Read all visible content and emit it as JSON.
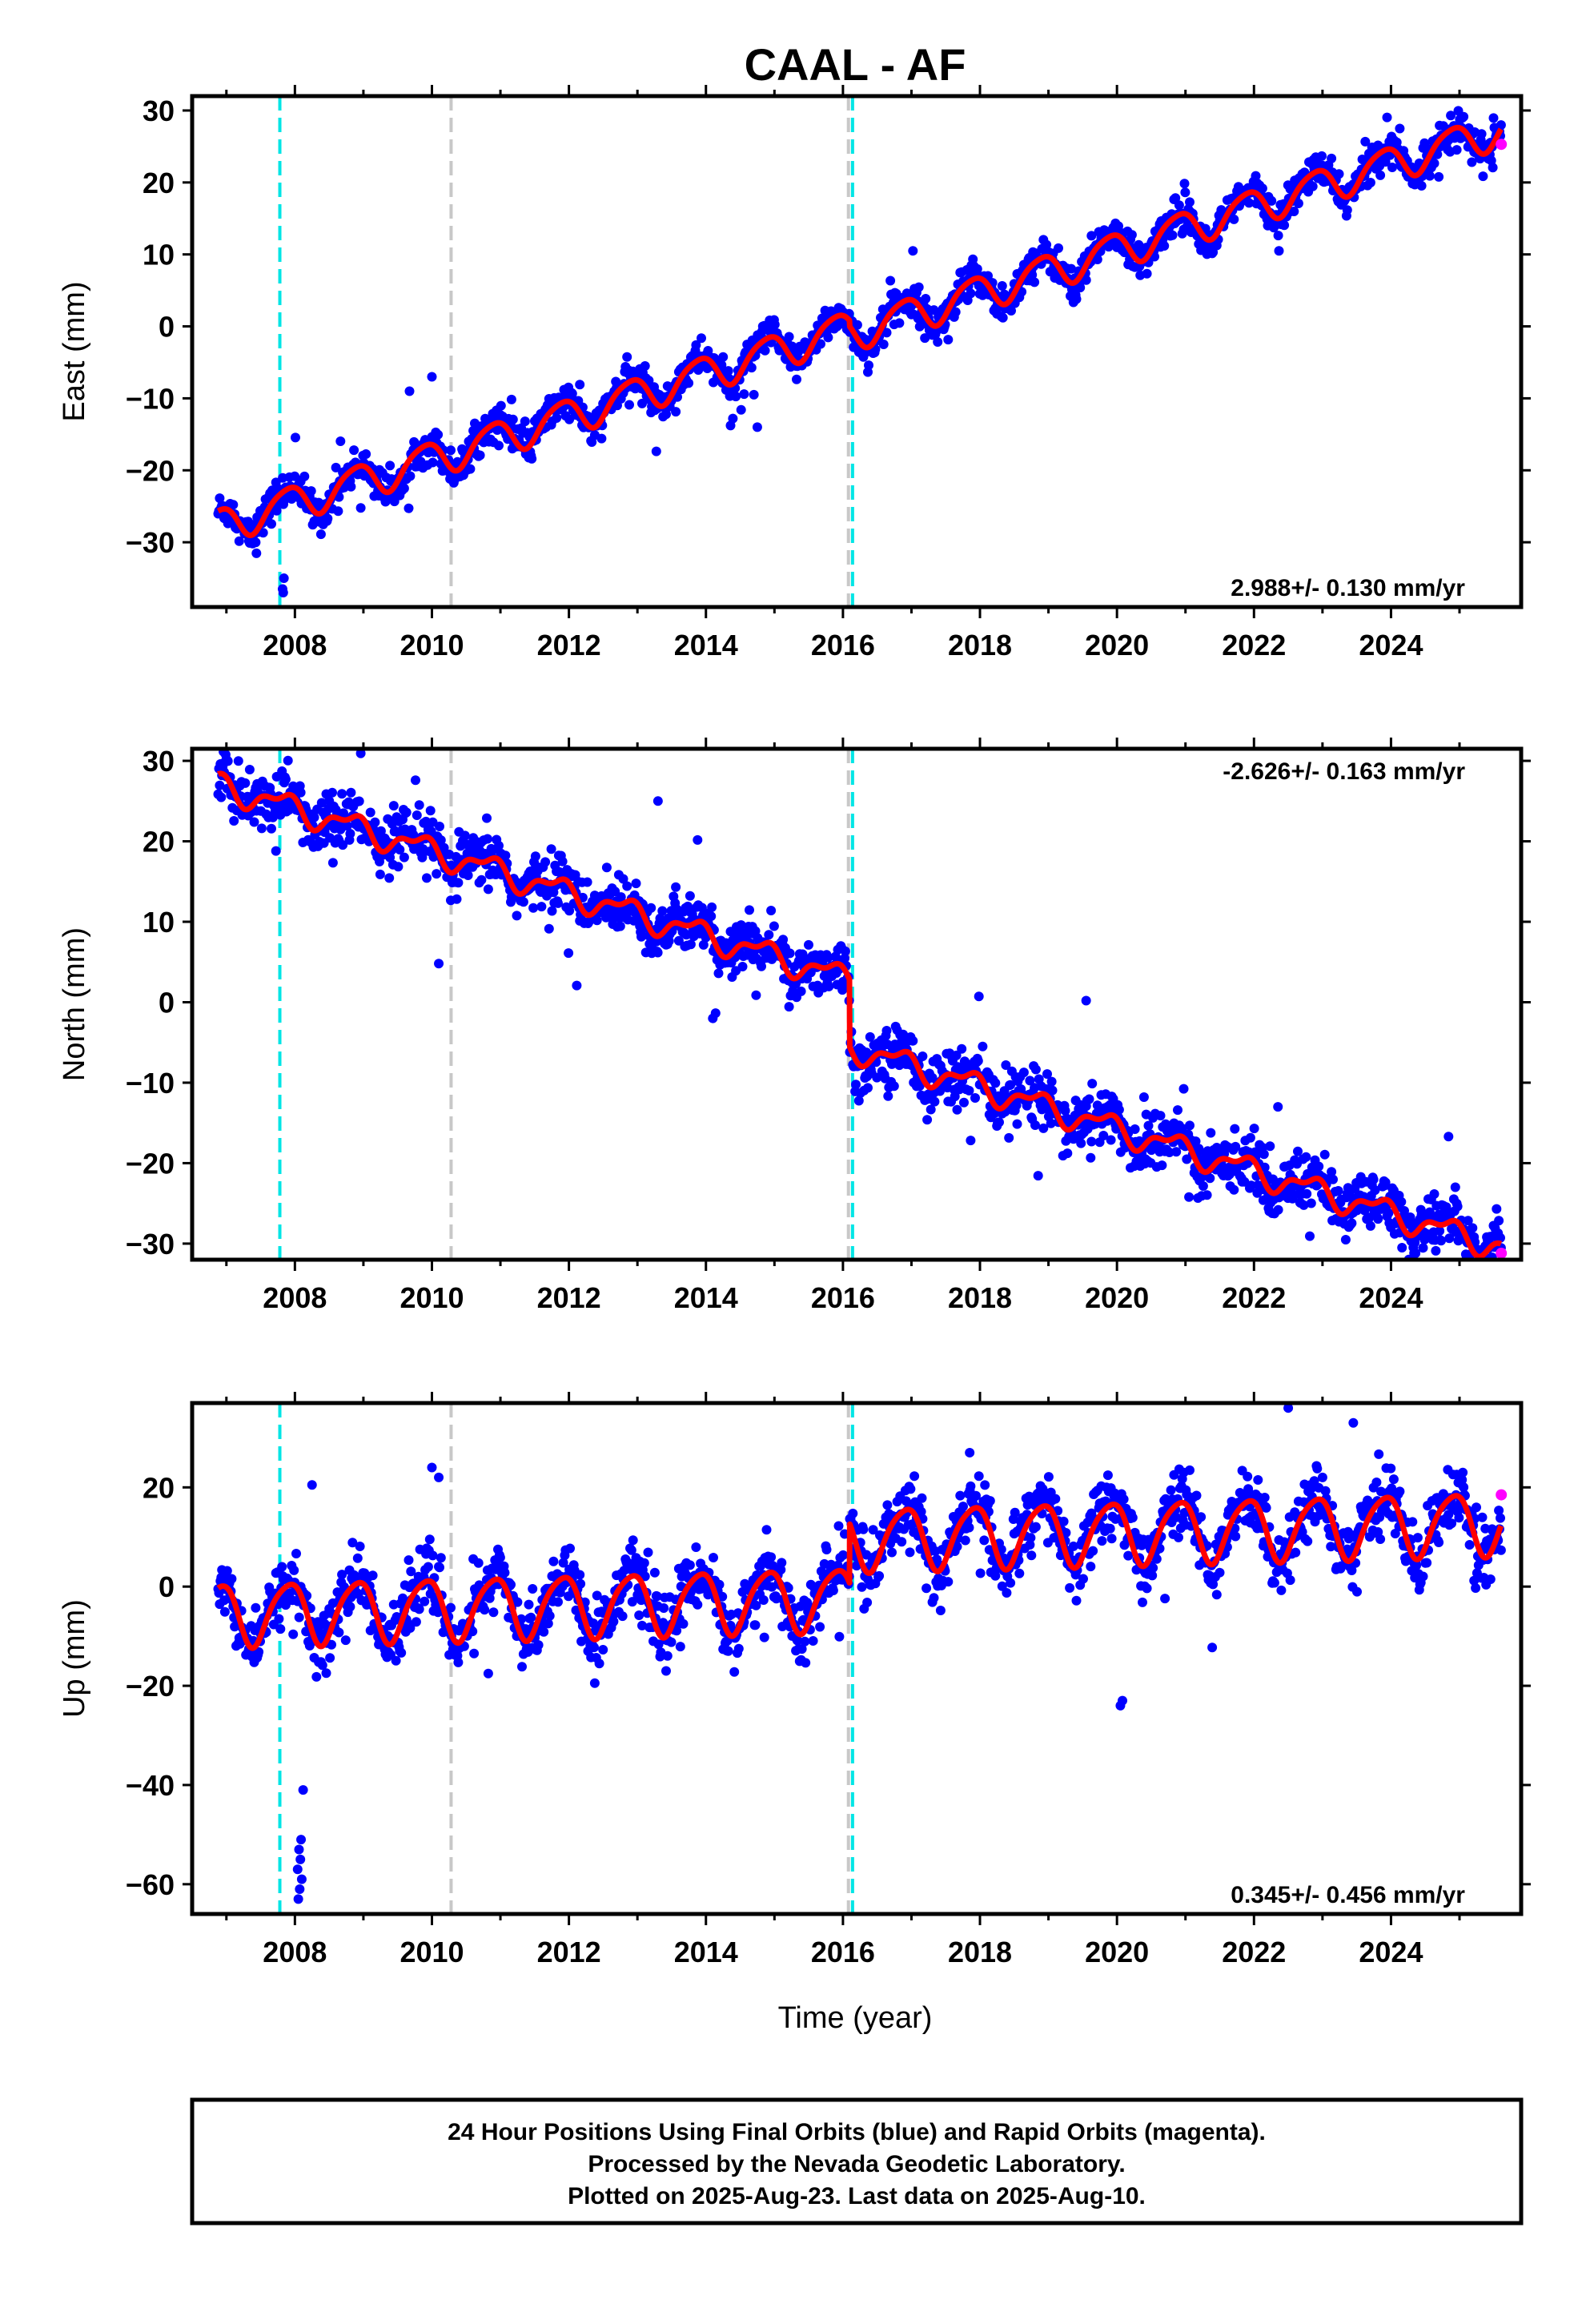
{
  "chart_data": {
    "type": "scatter",
    "title": "CAAL - AF",
    "xlabel": "Time (year)",
    "xlim": [
      2006.5,
      2025.9
    ],
    "x_ticks": [
      2008,
      2010,
      2012,
      2014,
      2016,
      2018,
      2020,
      2022,
      2024
    ],
    "tick_labels_x": [
      "2008",
      "2010",
      "2012",
      "2014",
      "2016",
      "2018",
      "2020",
      "2022",
      "2024"
    ],
    "data_span": [
      2006.88,
      2025.61
    ],
    "vertical_lines": [
      {
        "x": 2007.78,
        "color": "#00e5e5"
      },
      {
        "x": 2010.28,
        "color": "#c8c8c8"
      },
      {
        "x": 2016.08,
        "color": "#c8c8c8"
      },
      {
        "x": 2016.14,
        "color": "#00e5e5"
      }
    ],
    "colors": {
      "final_orbits": "#0000ff",
      "rapid_orbits": "#ff00ff",
      "model": "#ff0000"
    },
    "panels": [
      {
        "id": "east",
        "ylabel": "East (mm)",
        "ylim": [
          -39,
          32
        ],
        "y_ticks": [
          -30,
          -20,
          -10,
          0,
          10,
          20,
          30
        ],
        "tick_labels_y": [
          "−30",
          "−20",
          "−10",
          "0",
          "10",
          "20",
          "30"
        ],
        "rate_label": "2.988+/- 0.130 mm/yr",
        "rate_position": "bottom-right",
        "model": {
          "trend": 2.988,
          "ref_value": -27.7,
          "amp1": 2.4,
          "phase1": 2.3,
          "amp2": 0.4,
          "phase2": 0.4,
          "offset_at": 2016.1,
          "offset": -0.8
        },
        "noise": 1.2,
        "outliers": [
          [
            2007.83,
            -37
          ],
          [
            2007.84,
            -35
          ],
          [
            2007.82,
            -36.5
          ],
          [
            2010.0,
            -7
          ],
          [
            2014.75,
            -14
          ],
          [
            2014.7,
            -9.5
          ]
        ],
        "rapid_last": [
          2025.61,
          25.3
        ]
      },
      {
        "id": "north",
        "ylabel": "North (mm)",
        "ylim": [
          -32,
          31.5
        ],
        "y_ticks": [
          -30,
          -20,
          -10,
          0,
          10,
          20,
          30
        ],
        "tick_labels_y": [
          "−30",
          "−20",
          "−10",
          "0",
          "10",
          "20",
          "30"
        ],
        "rate_label": "-2.626+/- 0.163 mm/yr",
        "rate_position": "top-right",
        "model": {
          "trend": -2.626,
          "ref_value": 27.0,
          "amp1": 1.4,
          "phase1": 2.7,
          "amp2": 0.7,
          "phase2": 1.6,
          "offset_at": 2016.1,
          "offset": -8.3
        },
        "noise": 1.7,
        "outliers": [
          [
            2010.1,
            4.8
          ],
          [
            2007.0,
            30.2
          ],
          [
            2013.3,
            25
          ],
          [
            2019.55,
            0.2
          ],
          [
            2022.35,
            -13
          ],
          [
            2025.62,
            -31.2
          ],
          [
            2014.1,
            -2
          ]
        ],
        "rapid_last": [
          2025.61,
          -31.2
        ]
      },
      {
        "id": "up",
        "ylabel": "Up (mm)",
        "ylim": [
          -66,
          37
        ],
        "y_ticks": [
          -60,
          -40,
          -20,
          0,
          20
        ],
        "tick_labels_y": [
          "−60",
          "−40",
          "−20",
          "0",
          "20"
        ],
        "rate_label": "0.345+/- 0.456 mm/yr",
        "rate_position": "bottom-right",
        "model": {
          "trend": 0.345,
          "ref_value": -5.5,
          "amp1": 6.2,
          "phase1": 2.2,
          "amp2": 1.0,
          "phase2": 0.3,
          "offset_at": 2016.1,
          "offset": 12.0
        },
        "noise": 3.2,
        "outliers": [
          [
            2008.05,
            -63
          ],
          [
            2008.07,
            -61
          ],
          [
            2008.1,
            -59
          ],
          [
            2008.04,
            -57
          ],
          [
            2008.08,
            -55
          ],
          [
            2008.06,
            -53
          ],
          [
            2008.09,
            -51
          ],
          [
            2008.12,
            -41
          ],
          [
            2008.25,
            20.5
          ],
          [
            2010.0,
            24
          ],
          [
            2010.1,
            22
          ],
          [
            2020.05,
            -24
          ],
          [
            2020.08,
            -23
          ],
          [
            2022.5,
            36
          ],
          [
            2023.45,
            33
          ],
          [
            2017.85,
            27
          ]
        ],
        "rapid_last": [
          2025.61,
          18.5
        ]
      }
    ]
  },
  "footer": {
    "line1": "24 Hour Positions Using Final Orbits (blue) and Rapid Orbits (magenta).",
    "line2": "Processed by the Nevada Geodetic Laboratory.",
    "line3": "Plotted on 2025-Aug-23. Last data on 2025-Aug-10."
  }
}
